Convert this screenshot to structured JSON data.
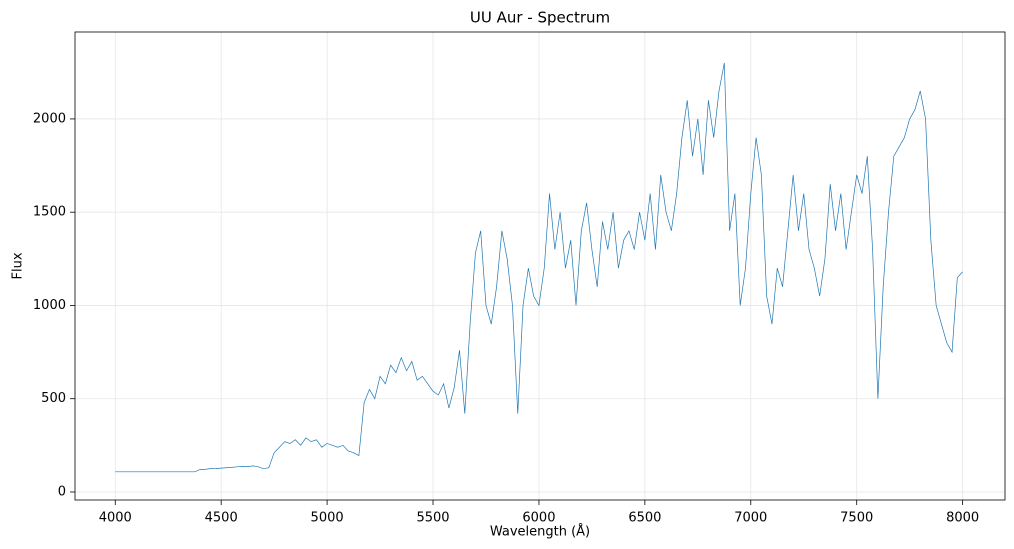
{
  "chart_data": {
    "type": "line",
    "title": "UU Aur - Spectrum",
    "x_label": "Wavelength (Å)",
    "y_label": "Flux",
    "x": [
      4000,
      4025,
      4050,
      4075,
      4100,
      4125,
      4150,
      4175,
      4200,
      4225,
      4250,
      4275,
      4300,
      4325,
      4350,
      4375,
      4400,
      4425,
      4450,
      4475,
      4500,
      4525,
      4550,
      4575,
      4600,
      4625,
      4650,
      4675,
      4700,
      4725,
      4750,
      4775,
      4800,
      4825,
      4850,
      4875,
      4900,
      4925,
      4950,
      4975,
      5000,
      5025,
      5050,
      5075,
      5100,
      5125,
      5150,
      5175,
      5200,
      5225,
      5250,
      5275,
      5300,
      5325,
      5350,
      5375,
      5400,
      5425,
      5450,
      5475,
      5500,
      5525,
      5550,
      5575,
      5600,
      5625,
      5650,
      5675,
      5700,
      5725,
      5750,
      5775,
      5800,
      5825,
      5850,
      5875,
      5900,
      5925,
      5950,
      5975,
      6000,
      6025,
      6050,
      6075,
      6100,
      6125,
      6150,
      6175,
      6200,
      6225,
      6250,
      6275,
      6300,
      6325,
      6350,
      6375,
      6400,
      6425,
      6450,
      6475,
      6500,
      6525,
      6550,
      6575,
      6600,
      6625,
      6650,
      6675,
      6700,
      6725,
      6750,
      6775,
      6800,
      6825,
      6850,
      6875,
      6900,
      6925,
      6950,
      6975,
      7000,
      7025,
      7050,
      7075,
      7100,
      7125,
      7150,
      7175,
      7200,
      7225,
      7250,
      7275,
      7300,
      7325,
      7350,
      7375,
      7400,
      7425,
      7450,
      7475,
      7500,
      7525,
      7550,
      7575,
      7600,
      7625,
      7650,
      7675,
      7700,
      7725,
      7750,
      7775,
      7800,
      7825,
      7850,
      7875,
      7900,
      7925,
      7950,
      7975,
      8000
    ],
    "series": [
      {
        "color": "#1f77b4",
        "values": [
          108,
          108,
          108,
          108,
          108,
          108,
          108,
          108,
          108,
          108,
          108,
          108,
          108,
          108,
          108,
          108,
          120,
          122,
          125,
          126,
          128,
          130,
          132,
          135,
          138,
          136,
          140,
          135,
          125,
          130,
          210,
          240,
          270,
          260,
          280,
          250,
          290,
          270,
          280,
          240,
          260,
          250,
          240,
          250,
          220,
          210,
          195,
          480,
          550,
          500,
          620,
          580,
          680,
          640,
          720,
          650,
          700,
          600,
          620,
          580,
          540,
          520,
          580,
          450,
          560,
          760,
          420,
          900,
          1280,
          1400,
          1000,
          900,
          1100,
          1400,
          1250,
          1000,
          420,
          1000,
          1200,
          1050,
          1000,
          1200,
          1600,
          1300,
          1500,
          1200,
          1350,
          1000,
          1400,
          1550,
          1300,
          1100,
          1450,
          1300,
          1500,
          1200,
          1350,
          1400,
          1300,
          1500,
          1350,
          1600,
          1300,
          1700,
          1500,
          1400,
          1600,
          1900,
          2100,
          1800,
          2000,
          1700,
          2100,
          1900,
          2150,
          2300,
          1400,
          1600,
          1000,
          1200,
          1600,
          1900,
          1700,
          1050,
          900,
          1200,
          1100,
          1400,
          1700,
          1400,
          1600,
          1300,
          1200,
          1050,
          1250,
          1650,
          1400,
          1600,
          1300,
          1500,
          1700,
          1600,
          1800,
          1300,
          500,
          1100,
          1500,
          1800,
          1850,
          1900,
          2000,
          2050,
          2150,
          2000,
          1350,
          1000,
          900,
          800,
          750,
          1150,
          1180
        ]
      }
    ],
    "xlim": [
      3810,
      8200
    ],
    "ylim": [
      -43,
      2466
    ],
    "xticks": [
      4000,
      4500,
      5000,
      5500,
      6000,
      6500,
      7000,
      7500,
      8000
    ],
    "yticks": [
      0,
      500,
      1000,
      1500,
      2000
    ],
    "grid": true
  }
}
